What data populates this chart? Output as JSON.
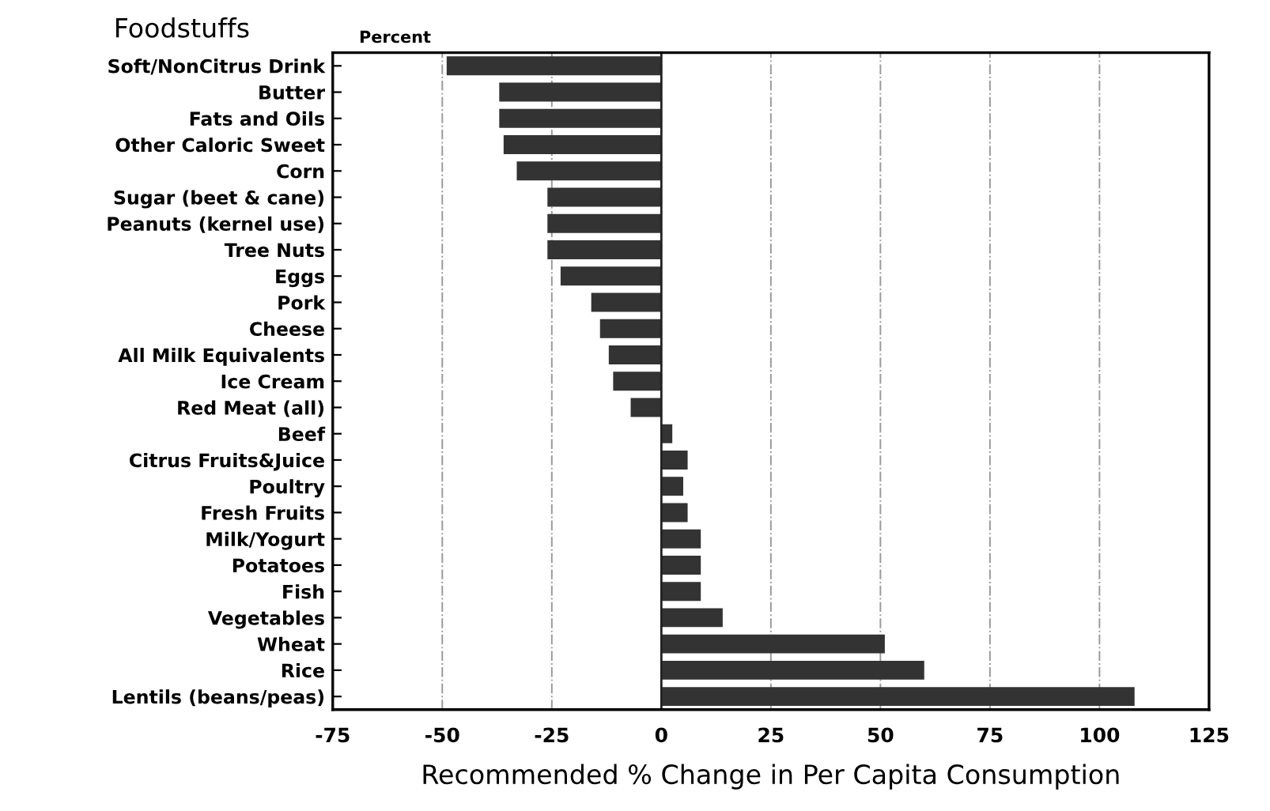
{
  "chart_data": {
    "type": "bar",
    "orientation": "horizontal",
    "ylabel": "Foodstuffs",
    "xlabel": "Recommended % Change in Per Capita Consumption",
    "annotations": [
      "Percent"
    ],
    "categories": [
      "Soft/NonCitrus Drink",
      "Butter",
      "Fats and Oils",
      "Other Caloric Sweet",
      "Corn",
      "Sugar (beet & cane)",
      "Peanuts (kernel use)",
      "Tree Nuts",
      "Eggs",
      "Pork",
      "Cheese",
      "All Milk Equivalents",
      "Ice Cream",
      "Red Meat (all)",
      "Beef",
      "Citrus Fruits&Juice",
      "Poultry",
      "Fresh Fruits",
      "Milk/Yogurt",
      "Potatoes",
      "Fish",
      "Vegetables",
      "Wheat",
      "Rice",
      "Lentils (beans/peas)"
    ],
    "values": [
      -49,
      -37,
      -37,
      -36,
      -33,
      -26,
      -26,
      -26,
      -23,
      -16,
      -14,
      -12,
      -11,
      -7,
      2.5,
      6,
      5,
      6,
      9,
      9,
      9,
      14,
      51,
      60,
      108
    ],
    "color": "#333333",
    "xlim": [
      -75,
      125
    ],
    "xticks": [
      -75,
      -50,
      -25,
      0,
      25,
      50,
      75,
      100,
      125
    ],
    "grid": "x"
  }
}
